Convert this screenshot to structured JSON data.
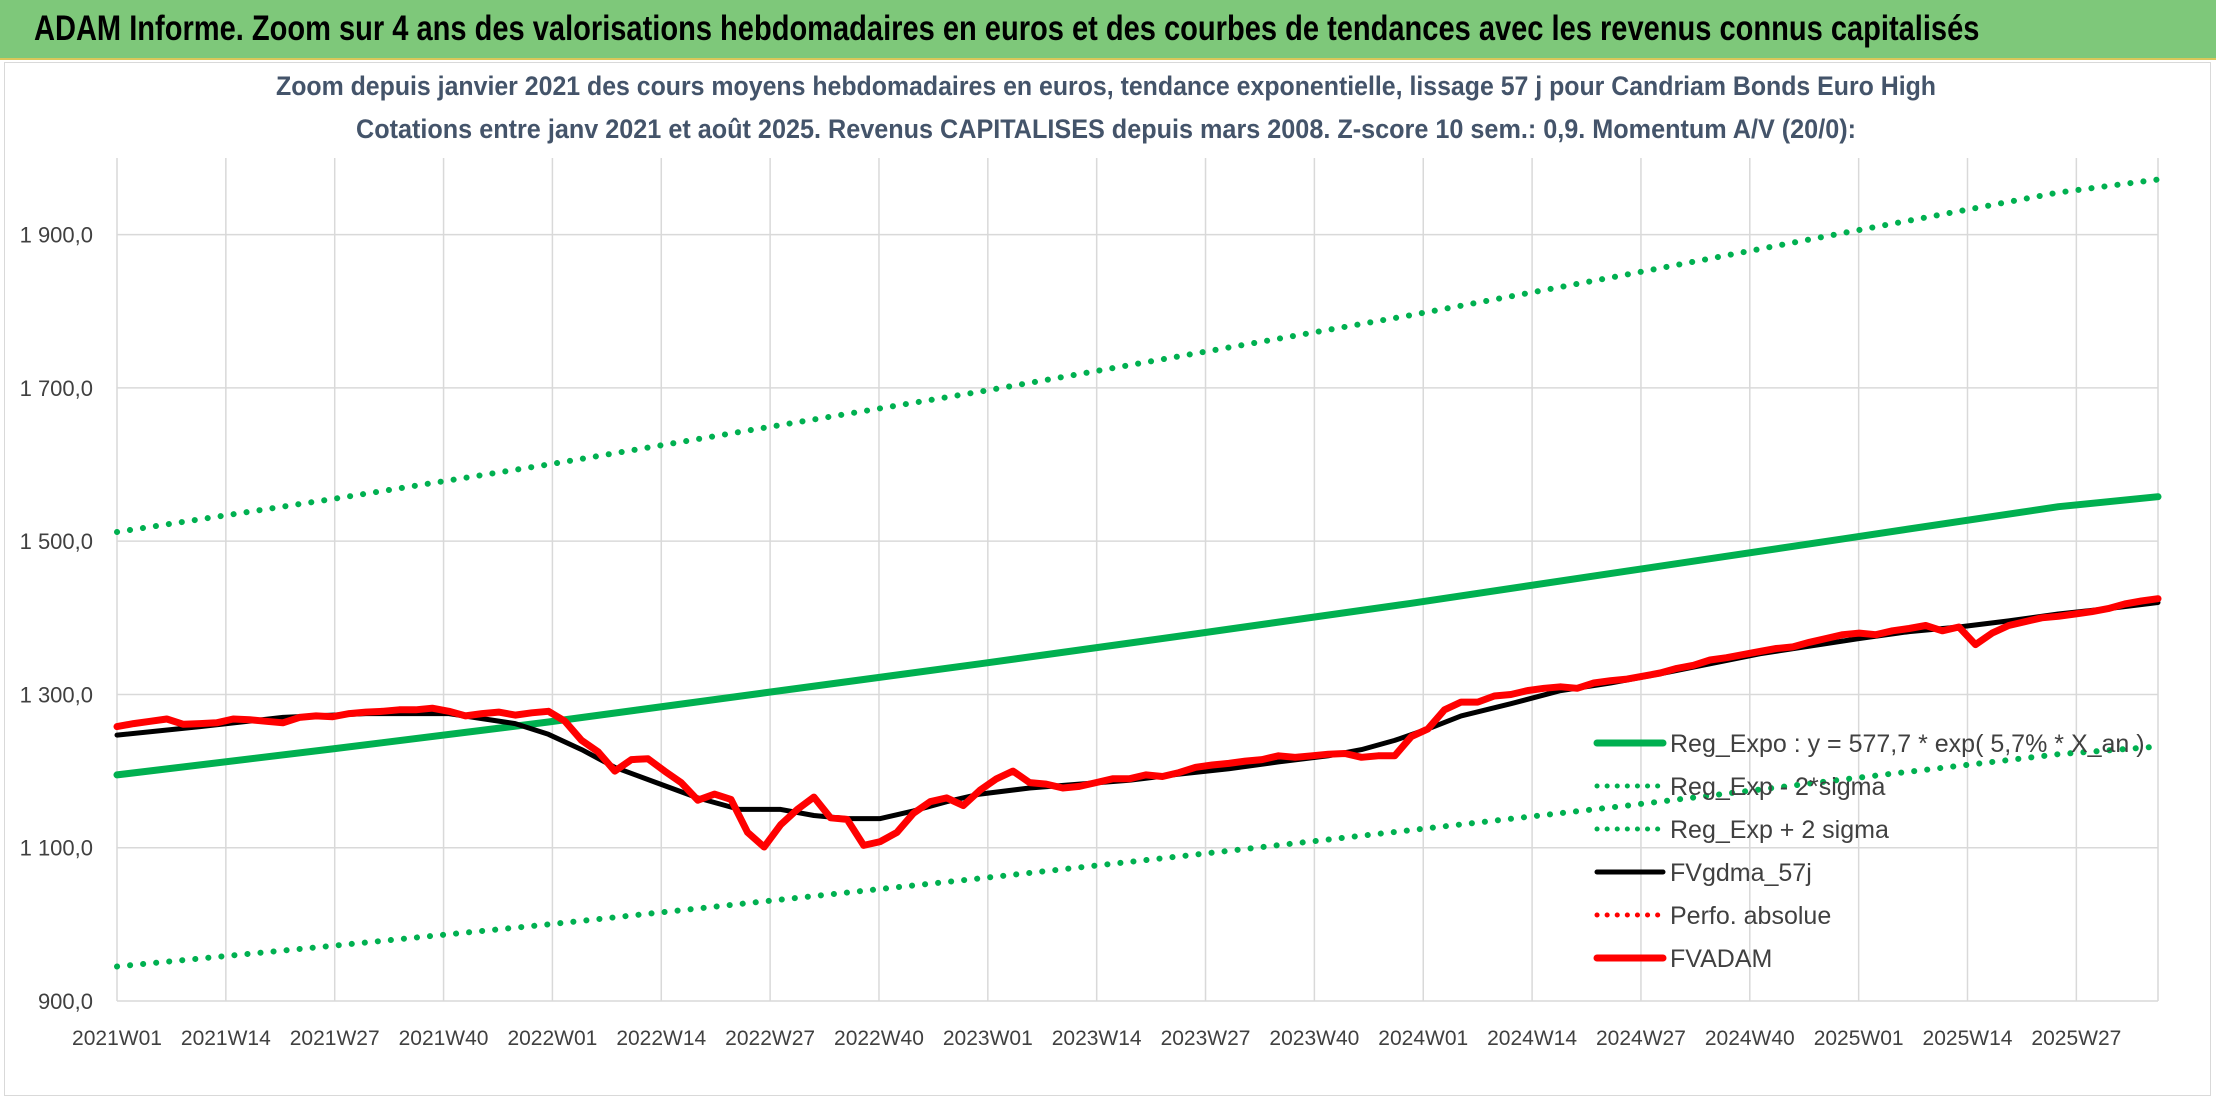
{
  "banner": {
    "title": "ADAM Informe. Zoom sur 4 ans des valorisations hebdomadaires en euros et des courbes de tendances avec les revenus connus capitalisés"
  },
  "colors": {
    "banner_bg": "#7ec87a",
    "trend_green": "#00b050",
    "fvadam_red": "#ff0000",
    "gdma_black": "#000000",
    "title_text": "#44546a"
  },
  "chart_data": {
    "type": "line",
    "title": "Zoom depuis janvier 2021 des cours moyens hebdomadaires en euros, tendance exponentielle, lissage 57 j pour Candriam Bonds Euro High",
    "subtitle": "Cotations entre janv 2021 et août 2025. Revenus CAPITALISES depuis mars 2008. Z-score 10 sem.: 0,9. Momentum A/V (20/0):",
    "xlabel": "",
    "ylabel": "",
    "ylim": [
      900,
      2000
    ],
    "yticks": [
      900,
      1100,
      1300,
      1500,
      1700,
      1900
    ],
    "ytick_labels": [
      "900,0",
      "1 100,0",
      "1 300,0",
      "1 500,0",
      "1 700,0",
      "1 900,0"
    ],
    "x_range_weeks": [
      0,
      246
    ],
    "xtick_labels": [
      "2021W01",
      "2021W14",
      "2021W27",
      "2021W40",
      "2022W01",
      "2022W14",
      "2022W27",
      "2022W40",
      "2023W01",
      "2023W14",
      "2023W27",
      "2023W40",
      "2024W01",
      "2024W14",
      "2024W27",
      "2024W40",
      "2025W01",
      "2025W14",
      "2025W27"
    ],
    "grid": true,
    "legend_position": "right",
    "series": [
      {
        "name": "Reg_Expo : y = 577,7 * exp( 5,7% * X_an )",
        "color": "#00b050",
        "style": "solid",
        "x": [
          0,
          26,
          52,
          78,
          104,
          130,
          156,
          182,
          208,
          234,
          246
        ],
        "y": [
          1195,
          1229,
          1264,
          1302,
          1340,
          1379,
          1419,
          1461,
          1503,
          1545,
          1558
        ]
      },
      {
        "name": "Reg_Exp - 2*sigma",
        "color": "#00b050",
        "style": "dotted",
        "x": [
          0,
          26,
          52,
          78,
          104,
          130,
          156,
          182,
          208,
          234,
          246
        ],
        "y": [
          945,
          972,
          1000,
          1030,
          1060,
          1091,
          1123,
          1155,
          1189,
          1222,
          1232
        ]
      },
      {
        "name": "Reg_Exp + 2 sigma",
        "color": "#00b050",
        "style": "dotted",
        "x": [
          0,
          26,
          52,
          78,
          104,
          130,
          156,
          182,
          208,
          234,
          246
        ],
        "y": [
          1512,
          1555,
          1600,
          1648,
          1695,
          1745,
          1795,
          1848,
          1902,
          1955,
          1972
        ]
      },
      {
        "name": "FVgdma_57j",
        "color": "#000000",
        "style": "solid",
        "x": [
          0,
          10,
          20,
          30,
          40,
          48,
          52,
          56,
          60,
          65,
          70,
          75,
          80,
          84,
          88,
          92,
          96,
          100,
          104,
          110,
          116,
          122,
          128,
          134,
          140,
          146,
          150,
          154,
          158,
          162,
          168,
          174,
          180,
          186,
          192,
          198,
          204,
          210,
          216,
          222,
          228,
          234,
          240,
          246
        ],
        "y": [
          1247,
          1258,
          1270,
          1275,
          1275,
          1262,
          1248,
          1228,
          1205,
          1185,
          1165,
          1150,
          1150,
          1142,
          1138,
          1138,
          1148,
          1160,
          1170,
          1178,
          1183,
          1188,
          1196,
          1203,
          1212,
          1220,
          1228,
          1240,
          1255,
          1272,
          1288,
          1305,
          1315,
          1327,
          1340,
          1353,
          1363,
          1373,
          1382,
          1388,
          1396,
          1405,
          1412,
          1420
        ]
      },
      {
        "name": "Perfo. absolue",
        "color": "#ff0000",
        "style": "dotted",
        "x": [],
        "y": []
      },
      {
        "name": "FVADAM",
        "color": "#ff0000",
        "style": "solid",
        "x": [
          0,
          2,
          4,
          6,
          8,
          10,
          12,
          14,
          16,
          18,
          20,
          22,
          24,
          26,
          28,
          30,
          32,
          34,
          36,
          38,
          40,
          42,
          44,
          46,
          48,
          50,
          52,
          54,
          56,
          58,
          60,
          62,
          64,
          66,
          68,
          70,
          72,
          74,
          76,
          78,
          80,
          82,
          84,
          86,
          88,
          90,
          92,
          94,
          96,
          98,
          100,
          102,
          104,
          106,
          108,
          110,
          112,
          114,
          116,
          118,
          120,
          122,
          124,
          126,
          128,
          130,
          132,
          134,
          136,
          138,
          140,
          142,
          144,
          146,
          148,
          150,
          152,
          154,
          156,
          158,
          160,
          162,
          164,
          166,
          168,
          170,
          172,
          174,
          176,
          178,
          180,
          182,
          184,
          186,
          188,
          190,
          192,
          194,
          196,
          198,
          200,
          202,
          204,
          206,
          208,
          210,
          212,
          214,
          216,
          218,
          220,
          222,
          224,
          226,
          228,
          230,
          232,
          234,
          236,
          238,
          240,
          242,
          244,
          246
        ],
        "y": [
          1258,
          1262,
          1265,
          1268,
          1261,
          1262,
          1263,
          1268,
          1267,
          1265,
          1263,
          1270,
          1272,
          1271,
          1275,
          1277,
          1278,
          1280,
          1280,
          1282,
          1278,
          1272,
          1275,
          1277,
          1273,
          1276,
          1278,
          1265,
          1240,
          1225,
          1200,
          1215,
          1216,
          1200,
          1185,
          1162,
          1170,
          1163,
          1120,
          1101,
          1130,
          1150,
          1166,
          1139,
          1137,
          1103,
          1108,
          1120,
          1145,
          1160,
          1165,
          1155,
          1175,
          1190,
          1200,
          1185,
          1183,
          1178,
          1180,
          1185,
          1190,
          1190,
          1195,
          1193,
          1198,
          1205,
          1208,
          1210,
          1213,
          1215,
          1220,
          1218,
          1220,
          1222,
          1223,
          1218,
          1220,
          1220,
          1245,
          1255,
          1280,
          1290,
          1290,
          1298,
          1300,
          1305,
          1308,
          1310,
          1308,
          1315,
          1318,
          1320,
          1324,
          1328,
          1334,
          1338,
          1345,
          1348,
          1352,
          1356,
          1360,
          1362,
          1368,
          1373,
          1378,
          1380,
          1378,
          1383,
          1386,
          1390,
          1383,
          1388,
          1365,
          1380,
          1390,
          1395,
          1400,
          1402,
          1405,
          1408,
          1412,
          1418,
          1422,
          1425
        ]
      }
    ]
  }
}
